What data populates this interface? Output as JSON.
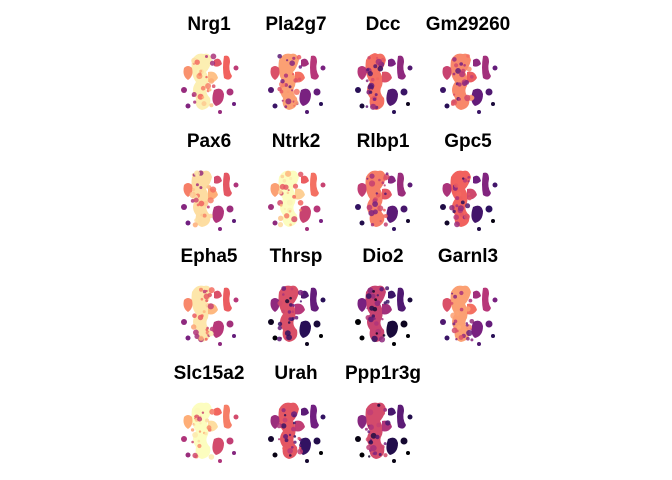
{
  "chart_data": {
    "type": "heatmap",
    "description_kind": "spatial feature plots (faceted)",
    "colormap": "magma",
    "colors": [
      "#000004",
      "#2c115f",
      "#721f81",
      "#b73779",
      "#f1605d",
      "#feb078",
      "#fcfdbf"
    ],
    "layout": {
      "rows": 4,
      "cols": 4
    },
    "panels": [
      {
        "title": "Nrg1",
        "level": 0.72
      },
      {
        "title": "Pla2g7",
        "level": 0.55
      },
      {
        "title": "Dcc",
        "level": 0.45
      },
      {
        "title": "Gm29260",
        "level": 0.5
      },
      {
        "title": "Pax6",
        "level": 0.68
      },
      {
        "title": "Ntrk2",
        "level": 0.75
      },
      {
        "title": "Rlbp1",
        "level": 0.48
      },
      {
        "title": "Gpc5",
        "level": 0.42
      },
      {
        "title": "Epha5",
        "level": 0.7
      },
      {
        "title": "Thrsp",
        "level": 0.35
      },
      {
        "title": "Dio2",
        "level": 0.3
      },
      {
        "title": "Garnl3",
        "level": 0.55
      },
      {
        "title": "Slc15a2",
        "level": 0.78
      },
      {
        "title": "Urah",
        "level": 0.38
      },
      {
        "title": "Ppp1r3g",
        "level": 0.33
      }
    ]
  }
}
